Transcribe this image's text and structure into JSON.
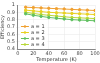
{
  "chart_data": {
    "type": "line",
    "x_label": "Temperature (K)",
    "y_label": "Efficiency",
    "x": [
      10,
      20,
      30,
      40,
      50,
      60,
      70,
      80,
      90,
      100
    ],
    "series": [
      {
        "name": "a = 1",
        "color": "#f0a030",
        "values": [
          0.97,
          0.965,
          0.96,
          0.955,
          0.95,
          0.945,
          0.94,
          0.935,
          0.93,
          0.925
        ]
      },
      {
        "name": "a = 2",
        "color": "#e8d020",
        "values": [
          0.93,
          0.92,
          0.91,
          0.9,
          0.895,
          0.89,
          0.885,
          0.88,
          0.875,
          0.87
        ]
      },
      {
        "name": "a = 3",
        "color": "#60c060",
        "values": [
          0.88,
          0.86,
          0.845,
          0.83,
          0.82,
          0.81,
          0.8,
          0.795,
          0.79,
          0.785
        ]
      },
      {
        "name": "a = 4",
        "color": "#b8d838",
        "values": [
          0.9,
          0.885,
          0.87,
          0.86,
          0.85,
          0.84,
          0.83,
          0.825,
          0.82,
          0.815
        ]
      }
    ],
    "xlim": [
      0,
      100
    ],
    "xticks": [
      0,
      20,
      40,
      60,
      80,
      100
    ],
    "ylim": [
      0.4,
      1
    ],
    "yticks": [
      0.4,
      0.5,
      0.6,
      0.7,
      0.8,
      0.9,
      1
    ],
    "grid": true,
    "legend": "lower left",
    "marker": "circle"
  }
}
